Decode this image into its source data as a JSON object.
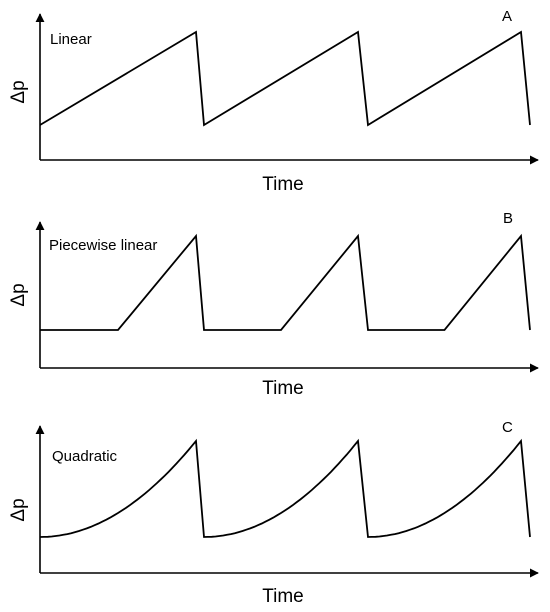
{
  "panels": [
    {
      "letter": "A",
      "curve_label": "Linear",
      "xlabel": "Time",
      "ylabel": "Δp",
      "profile": "linear"
    },
    {
      "letter": "B",
      "curve_label": "Piecewise linear",
      "xlabel": "Time",
      "ylabel": "Δp",
      "profile": "piecewise_linear"
    },
    {
      "letter": "C",
      "curve_label": "Quadratic",
      "xlabel": "Time",
      "ylabel": "Δp",
      "profile": "quadratic"
    }
  ],
  "cycles": 3
}
